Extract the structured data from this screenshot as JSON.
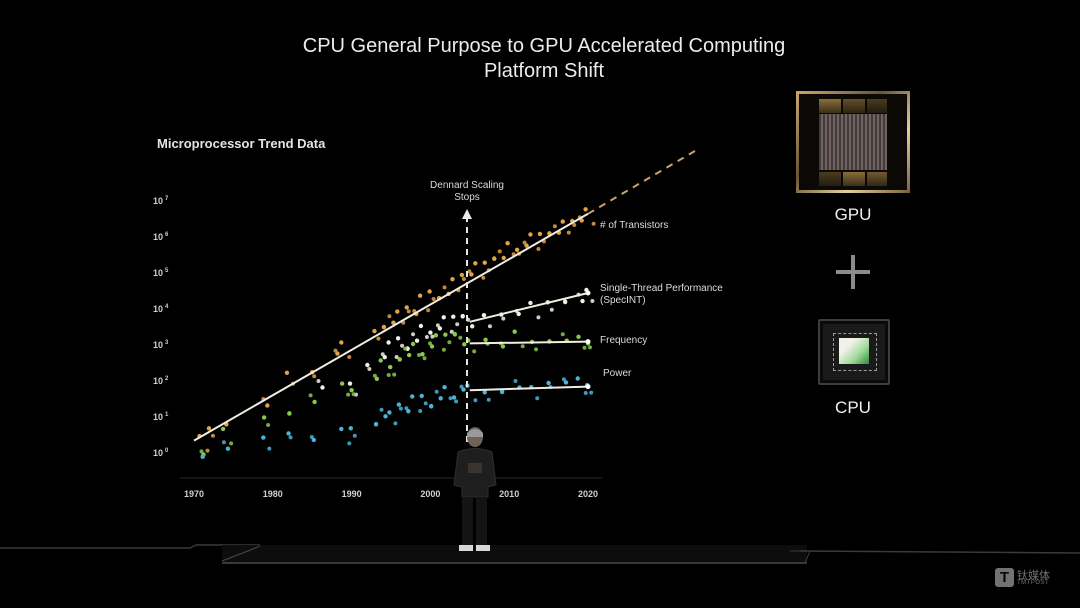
{
  "slide": {
    "title_line1": "CPU General Purpose to GPU Accelerated Computing",
    "title_line2": "Platform Shift",
    "chart_heading": "Microprocessor Trend Data",
    "annotation": {
      "line1": "Dennard Scaling",
      "line2": "Stops",
      "year": 2005
    },
    "right_panel": {
      "gpu_label": "GPU",
      "plus_symbol": "+",
      "cpu_label": "CPU"
    },
    "watermark": {
      "icon": "T",
      "chinese": "钛媒体",
      "english": "TMTPOST"
    }
  },
  "chart_data": {
    "type": "scatter",
    "title": "Microprocessor Trend Data",
    "subtitle": "CPU General Purpose to GPU Accelerated Computing Platform Shift",
    "xlabel": "",
    "ylabel": "",
    "xlim": [
      1970,
      2020
    ],
    "ylim_log10": [
      0,
      7
    ],
    "y_scale": "log",
    "grid": false,
    "legend_position": "right (inline labels at line ends)",
    "x_ticks": [
      "1970",
      "1980",
      "1990",
      "2000",
      "2010",
      "2020"
    ],
    "y_ticks": [
      {
        "base": "10",
        "exp": "7"
      },
      {
        "base": "10",
        "exp": "6"
      },
      {
        "base": "10",
        "exp": "5"
      },
      {
        "base": "10",
        "exp": "4"
      },
      {
        "base": "10",
        "exp": "3"
      },
      {
        "base": "10",
        "exp": "2"
      },
      {
        "base": "10",
        "exp": "1"
      },
      {
        "base": "10",
        "exp": "0"
      }
    ],
    "annotations": [
      {
        "text": "Dennard Scaling Stops",
        "x": 2005,
        "style": "vertical dashed arrow"
      }
    ],
    "series": [
      {
        "name": "# of Transistors",
        "color": "#e0a24a",
        "trend": {
          "from": [
            1970,
            0.4
          ],
          "to": [
            2020,
            6.7
          ],
          "extrapolated_to": [
            2034,
            8.5
          ]
        },
        "points_log10": [
          [
            1971,
            0.4
          ],
          [
            1972,
            0.7
          ],
          [
            1974,
            0.9
          ],
          [
            1979,
            1.5
          ],
          [
            1982,
            2.2
          ],
          [
            1985,
            2.3
          ],
          [
            1988,
            2.9
          ],
          [
            1989,
            3.0
          ],
          [
            1993,
            3.4
          ],
          [
            1994,
            3.6
          ],
          [
            1995,
            3.8
          ],
          [
            1996,
            3.9
          ],
          [
            1997,
            4.1
          ],
          [
            1998,
            4.0
          ],
          [
            1999,
            4.3
          ],
          [
            2000,
            4.5
          ],
          [
            2001,
            4.4
          ],
          [
            2002,
            4.6
          ],
          [
            2003,
            4.8
          ],
          [
            2004,
            5.0
          ],
          [
            2005,
            5.1
          ],
          [
            2006,
            5.2
          ],
          [
            2007,
            5.3
          ],
          [
            2008,
            5.5
          ],
          [
            2009,
            5.6
          ],
          [
            2010,
            5.8
          ],
          [
            2011,
            5.7
          ],
          [
            2012,
            5.9
          ],
          [
            2013,
            6.0
          ],
          [
            2014,
            6.1
          ],
          [
            2015,
            6.2
          ],
          [
            2016,
            6.3
          ],
          [
            2017,
            6.4
          ],
          [
            2018,
            6.5
          ],
          [
            2019,
            6.6
          ],
          [
            2020,
            6.7
          ]
        ]
      },
      {
        "name": "Single-Thread Performance (SpecINT)",
        "color": "#f0f0e6",
        "trend_after_2005": {
          "from": [
            2005,
            3.7
          ],
          "to": [
            2020,
            4.5
          ]
        },
        "points_log10": [
          [
            1986,
            2.0
          ],
          [
            1990,
            1.9
          ],
          [
            1992,
            2.5
          ],
          [
            1994,
            2.8
          ],
          [
            1995,
            3.0
          ],
          [
            1996,
            3.2
          ],
          [
            1997,
            3.0
          ],
          [
            1998,
            3.3
          ],
          [
            1999,
            3.5
          ],
          [
            2000,
            3.4
          ],
          [
            2001,
            3.6
          ],
          [
            2002,
            3.7
          ],
          [
            2003,
            3.8
          ],
          [
            2004,
            3.9
          ],
          [
            2005,
            3.7
          ],
          [
            2007,
            3.8
          ],
          [
            2009,
            3.9
          ],
          [
            2011,
            4.0
          ],
          [
            2013,
            4.1
          ],
          [
            2015,
            4.2
          ],
          [
            2017,
            4.3
          ],
          [
            2019,
            4.4
          ],
          [
            2020,
            4.5
          ]
        ]
      },
      {
        "name": "Frequency",
        "color": "#8cc84b",
        "trend_after_2005": {
          "from": [
            2005,
            3.1
          ],
          "to": [
            2020,
            3.15
          ]
        },
        "points_log10": [
          [
            1971,
            0.1
          ],
          [
            1974,
            0.6
          ],
          [
            1979,
            1.0
          ],
          [
            1982,
            1.2
          ],
          [
            1985,
            1.6
          ],
          [
            1989,
            1.9
          ],
          [
            1990,
            1.8
          ],
          [
            1993,
            2.2
          ],
          [
            1994,
            2.5
          ],
          [
            1995,
            2.4
          ],
          [
            1996,
            2.7
          ],
          [
            1997,
            2.9
          ],
          [
            1998,
            3.0
          ],
          [
            1999,
            2.8
          ],
          [
            2000,
            3.1
          ],
          [
            2001,
            3.2
          ],
          [
            2002,
            3.3
          ],
          [
            2003,
            3.4
          ],
          [
            2004,
            3.2
          ],
          [
            2005,
            3.1
          ],
          [
            2007,
            3.2
          ],
          [
            2009,
            3.1
          ],
          [
            2011,
            3.3
          ],
          [
            2013,
            3.1
          ],
          [
            2015,
            3.2
          ],
          [
            2017,
            3.3
          ],
          [
            2019,
            3.2
          ],
          [
            2020,
            3.1
          ]
        ]
      },
      {
        "name": "Power",
        "color": "#4ab4d8",
        "trend_after_2005": {
          "from": [
            2005,
            1.8
          ],
          "to": [
            2020,
            1.9
          ]
        },
        "points_log10": [
          [
            1971,
            0.0
          ],
          [
            1974,
            0.3
          ],
          [
            1979,
            0.4
          ],
          [
            1982,
            0.6
          ],
          [
            1985,
            0.5
          ],
          [
            1989,
            0.6
          ],
          [
            1990,
            0.7
          ],
          [
            1993,
            0.9
          ],
          [
            1994,
            1.2
          ],
          [
            1995,
            1.1
          ],
          [
            1996,
            1.4
          ],
          [
            1997,
            1.3
          ],
          [
            1998,
            1.5
          ],
          [
            1999,
            1.6
          ],
          [
            2000,
            1.4
          ],
          [
            2001,
            1.7
          ],
          [
            2002,
            1.8
          ],
          [
            2003,
            1.6
          ],
          [
            2004,
            1.9
          ],
          [
            2005,
            1.8
          ],
          [
            2007,
            1.7
          ],
          [
            2009,
            1.8
          ],
          [
            2011,
            2.0
          ],
          [
            2013,
            1.8
          ],
          [
            2015,
            2.0
          ],
          [
            2017,
            2.1
          ],
          [
            2019,
            2.0
          ],
          [
            2020,
            1.9
          ]
        ]
      }
    ]
  }
}
